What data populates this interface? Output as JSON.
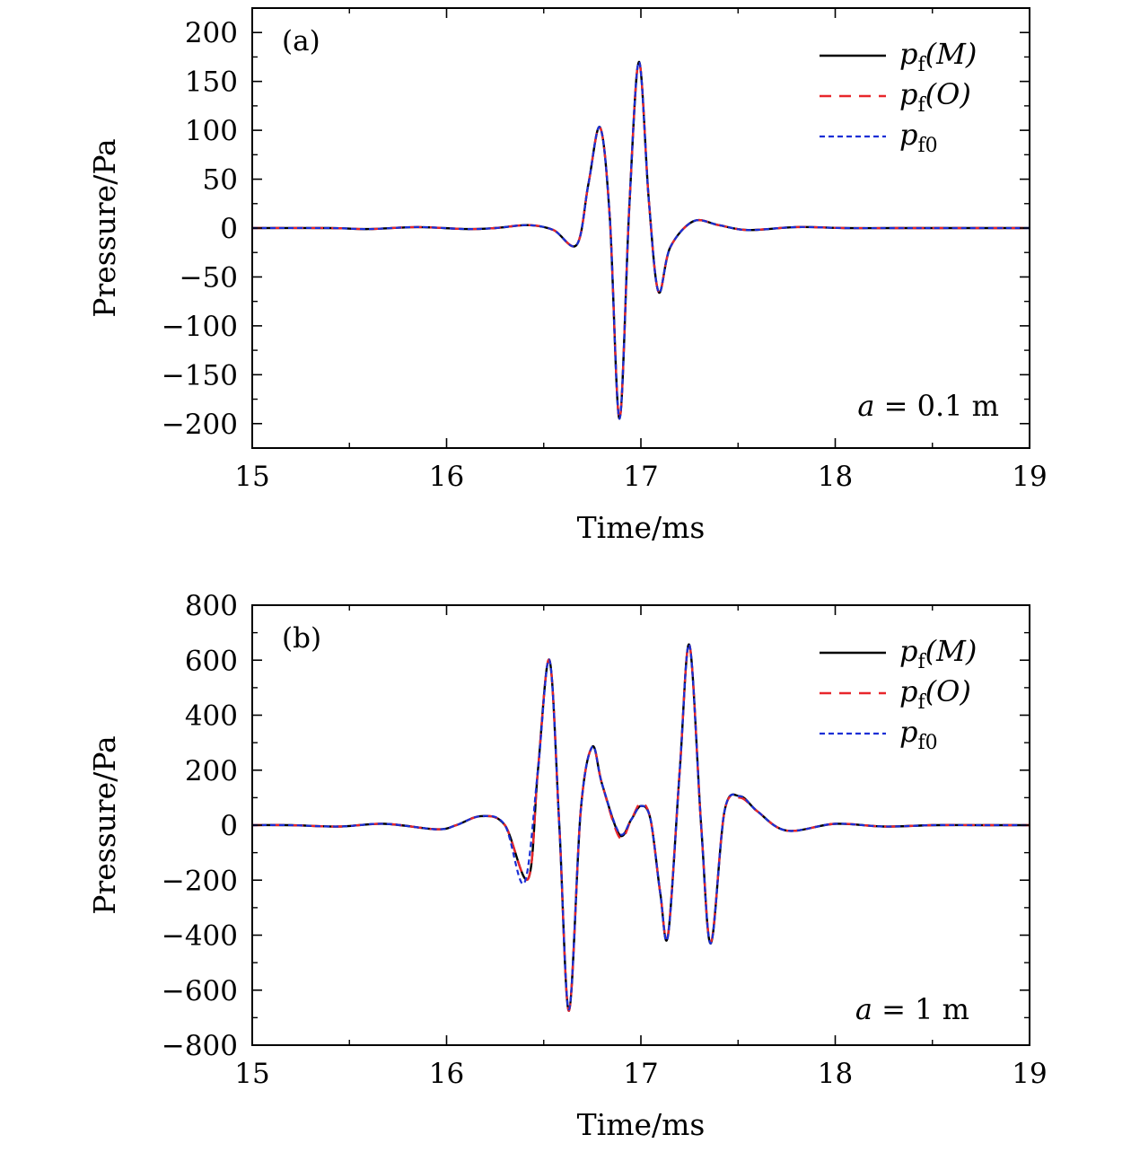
{
  "chart_data": [
    {
      "type": "line",
      "panel_label": "(a)",
      "xlabel": "Time/ms",
      "ylabel": "Pressure/Pa",
      "xlim": [
        15,
        19
      ],
      "ylim": [
        -225,
        225
      ],
      "xticks": [
        15,
        16,
        17,
        18,
        19
      ],
      "xtick_labels": [
        "15",
        "16",
        "17",
        "18",
        "19"
      ],
      "yticks": [
        200,
        150,
        100,
        50,
        0,
        -50,
        -100,
        -150,
        -200
      ],
      "ytick_labels": [
        "200",
        "150",
        "100",
        "50",
        "0",
        "−50",
        "−100",
        "−150",
        "−200"
      ],
      "legend_position": "top-right",
      "annotation": {
        "var": "a",
        "rest": " = 0.1 m"
      },
      "series": [
        {
          "name": "pf(M)",
          "label_main": "p",
          "label_sub": "f",
          "label_tail": "(M)",
          "color": "#000000",
          "style": "solid",
          "x": [
            15.0,
            15.4,
            15.6,
            15.85,
            16.1,
            16.25,
            16.42,
            16.55,
            16.67,
            16.73,
            16.79,
            16.84,
            16.89,
            16.94,
            16.99,
            17.04,
            17.09,
            17.15,
            17.27,
            17.4,
            17.55,
            17.8,
            18.05,
            18.3,
            18.6,
            19.0
          ],
          "y": [
            0,
            0,
            -1,
            1,
            -1,
            0,
            3,
            -2,
            -17,
            45,
            103,
            10,
            -195,
            20,
            170,
            30,
            -65,
            -20,
            7,
            3,
            -2,
            1,
            0,
            0,
            0,
            0
          ]
        },
        {
          "name": "pf(O)",
          "label_main": "p",
          "label_sub": "f",
          "label_tail": "(O)",
          "color": "#e8262b",
          "style": "dashed",
          "x": [
            15.0,
            15.4,
            15.6,
            15.85,
            16.1,
            16.25,
            16.42,
            16.55,
            16.67,
            16.73,
            16.79,
            16.84,
            16.89,
            16.94,
            16.99,
            17.04,
            17.09,
            17.15,
            17.27,
            17.4,
            17.55,
            17.8,
            18.05,
            18.3,
            18.6,
            19.0
          ],
          "y": [
            0,
            0,
            -1,
            1,
            -1,
            0,
            3,
            -2,
            -17,
            45,
            103,
            10,
            -195,
            20,
            170,
            30,
            -65,
            -20,
            7,
            3,
            -2,
            1,
            0,
            0,
            0,
            0
          ]
        },
        {
          "name": "pf0",
          "label_main": "p",
          "label_sub": "f0",
          "label_tail": "",
          "color": "#1a2fd6",
          "style": "dotted",
          "x": [
            15.0,
            15.4,
            15.6,
            15.85,
            16.1,
            16.25,
            16.42,
            16.55,
            16.67,
            16.73,
            16.79,
            16.84,
            16.89,
            16.94,
            16.99,
            17.04,
            17.09,
            17.15,
            17.27,
            17.4,
            17.55,
            17.8,
            18.05,
            18.3,
            18.6,
            19.0
          ],
          "y": [
            0,
            0,
            -1,
            1,
            -1,
            0,
            3,
            -2,
            -17,
            45,
            103,
            10,
            -195,
            20,
            170,
            30,
            -65,
            -20,
            7,
            3,
            -2,
            1,
            0,
            0,
            0,
            0
          ]
        }
      ]
    },
    {
      "type": "line",
      "panel_label": "(b)",
      "xlabel": "Time/ms",
      "ylabel": "Pressure/Pa",
      "xlim": [
        15,
        19
      ],
      "ylim": [
        -800,
        800
      ],
      "xticks": [
        15,
        16,
        17,
        18,
        19
      ],
      "xtick_labels": [
        "15",
        "16",
        "17",
        "18",
        "19"
      ],
      "yticks": [
        800,
        600,
        400,
        200,
        0,
        -200,
        -400,
        -600,
        -800
      ],
      "ytick_labels": [
        "800",
        "600",
        "400",
        "200",
        "0",
        "−200",
        "−400",
        "−600",
        "−800"
      ],
      "legend_position": "top-right",
      "annotation": {
        "var": "a",
        "rest": " = 1 m"
      },
      "series": [
        {
          "name": "pf(M)",
          "label_main": "p",
          "label_sub": "f",
          "label_tail": "(M)",
          "color": "#000000",
          "style": "solid",
          "x": [
            15.0,
            15.2,
            15.45,
            15.68,
            15.95,
            16.05,
            16.18,
            16.3,
            16.42,
            16.47,
            16.53,
            16.58,
            16.63,
            16.69,
            16.75,
            16.8,
            16.89,
            16.95,
            17.0,
            17.05,
            17.1,
            17.14,
            17.2,
            17.25,
            17.31,
            17.36,
            17.43,
            17.51,
            17.6,
            17.75,
            18.0,
            18.25,
            18.5,
            18.75,
            19.0
          ],
          "y": [
            0,
            0,
            -5,
            5,
            -15,
            0,
            33,
            0,
            -195,
            200,
            600,
            0,
            -675,
            50,
            285,
            150,
            -35,
            20,
            70,
            20,
            -250,
            -400,
            200,
            655,
            0,
            -430,
            50,
            105,
            50,
            -20,
            5,
            -5,
            0,
            0,
            0
          ]
        },
        {
          "name": "pf(O)",
          "label_main": "p",
          "label_sub": "f",
          "label_tail": "(O)",
          "color": "#e8262b",
          "style": "dashed",
          "x": [
            15.0,
            15.2,
            15.45,
            15.68,
            15.95,
            16.05,
            16.18,
            16.3,
            16.42,
            16.47,
            16.53,
            16.58,
            16.63,
            16.69,
            16.75,
            16.8,
            16.89,
            16.95,
            17.0,
            17.05,
            17.1,
            17.14,
            17.2,
            17.25,
            17.31,
            17.36,
            17.43,
            17.51,
            17.6,
            17.75,
            18.0,
            18.25,
            18.5,
            18.75,
            19.0
          ],
          "y": [
            0,
            0,
            -5,
            5,
            -15,
            0,
            33,
            0,
            -195,
            200,
            600,
            0,
            -675,
            50,
            285,
            150,
            -45,
            20,
            80,
            20,
            -250,
            -395,
            200,
            655,
            0,
            -425,
            50,
            100,
            50,
            -20,
            5,
            -5,
            0,
            0,
            0
          ]
        },
        {
          "name": "pf0",
          "label_main": "p",
          "label_sub": "f0",
          "label_tail": "",
          "color": "#1a2fd6",
          "style": "dotted",
          "x": [
            15.0,
            15.2,
            15.45,
            15.68,
            15.95,
            16.05,
            16.18,
            16.3,
            16.4,
            16.47,
            16.53,
            16.58,
            16.63,
            16.69,
            16.75,
            16.8,
            16.89,
            16.95,
            17.0,
            17.05,
            17.1,
            17.14,
            17.2,
            17.25,
            17.31,
            17.36,
            17.43,
            17.51,
            17.6,
            17.75,
            18.0,
            18.25,
            18.5,
            18.75,
            19.0
          ],
          "y": [
            0,
            0,
            -5,
            5,
            -15,
            0,
            33,
            0,
            -210,
            200,
            600,
            0,
            -670,
            50,
            285,
            150,
            -30,
            20,
            70,
            20,
            -250,
            -400,
            200,
            655,
            0,
            -430,
            50,
            105,
            50,
            -20,
            5,
            -5,
            0,
            0,
            0
          ]
        }
      ]
    }
  ]
}
